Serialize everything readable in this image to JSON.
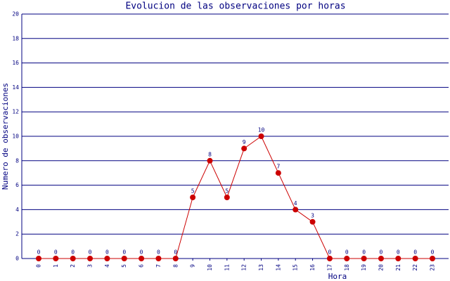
{
  "chart_data": {
    "type": "line",
    "title": "Evolucion de las observaciones por horas",
    "x_label": "Hora",
    "y_label": "Numero de observaciones",
    "categories": [
      "0",
      "1",
      "2",
      "3",
      "4",
      "5",
      "6",
      "7",
      "8",
      "9",
      "10",
      "11",
      "12",
      "13",
      "14",
      "15",
      "16",
      "17",
      "18",
      "19",
      "20",
      "21",
      "22",
      "23"
    ],
    "values": [
      0,
      0,
      0,
      0,
      0,
      0,
      0,
      0,
      0,
      5,
      8,
      5,
      9,
      10,
      7,
      4,
      3,
      0,
      0,
      0,
      0,
      0,
      0,
      0
    ],
    "color": "#cc0000",
    "ylim": [
      0,
      20
    ],
    "yticks": [
      0,
      2,
      4,
      6,
      8,
      10,
      12,
      14,
      16,
      18,
      20
    ],
    "grid": true,
    "data_labels": true
  }
}
